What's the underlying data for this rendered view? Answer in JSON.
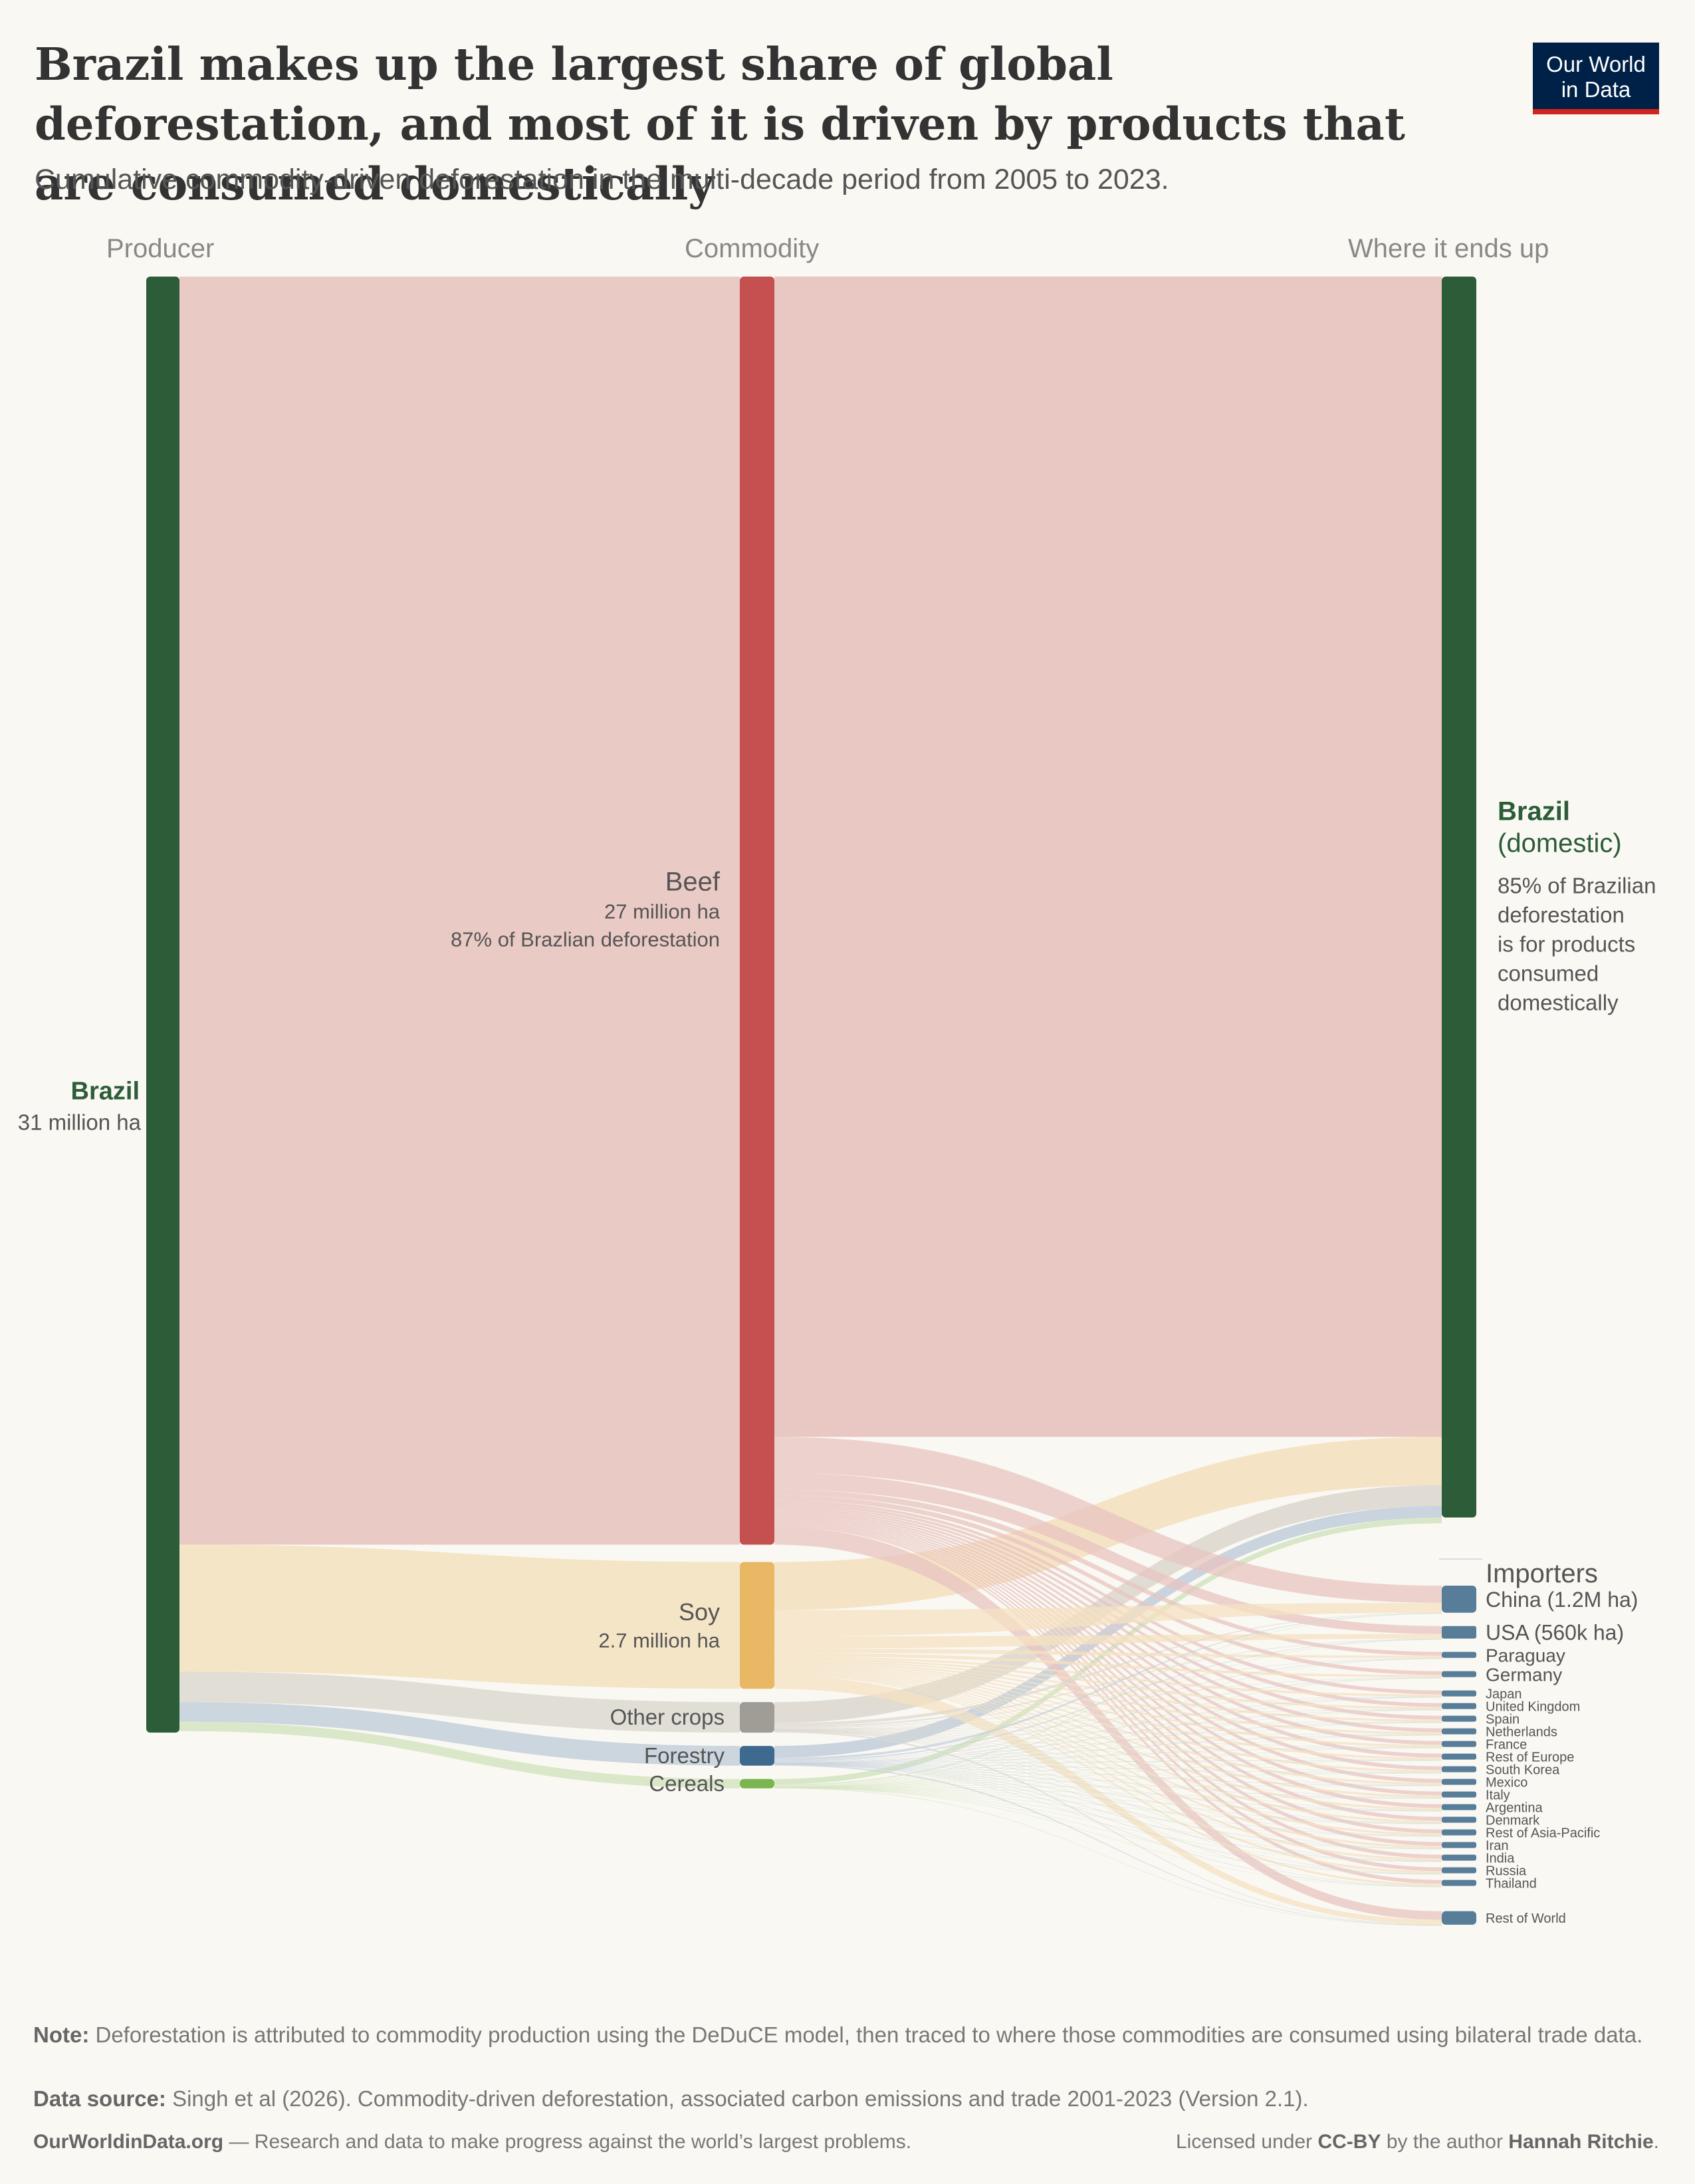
{
  "header": {
    "title": "Brazil makes up the largest share of global deforestation, and most of it is driven by products that are consumed domestically",
    "subtitle": "Cumulative commodity-driven deforestation in the multi-decade period from 2005 to 2023.",
    "logo_line1": "Our World",
    "logo_line2": "in Data"
  },
  "columns": {
    "producer": "Producer",
    "commodity": "Commodity",
    "destination": "Where it ends up"
  },
  "chart_data": {
    "type": "sankey",
    "producer": {
      "name": "Brazil",
      "value_label": "31 million ha",
      "value_mha": 31,
      "color": "#2c5c38"
    },
    "commodities": [
      {
        "name": "Beef",
        "value_label": "27 million ha",
        "share_label": "87% of Brazlian deforestation",
        "value_mha": 27,
        "color": "#c45050",
        "link_color": "#e8c4c0"
      },
      {
        "name": "Soy",
        "value_label": "2.7 million ha",
        "share_label": "",
        "value_mha": 2.7,
        "color": "#e8b864",
        "link_color": "#f4e2c2"
      },
      {
        "name": "Other crops",
        "value_label": "",
        "share_label": "",
        "value_mha": 0.65,
        "color": "#a09d97",
        "link_color": "#dedad2"
      },
      {
        "name": "Forestry",
        "value_label": "",
        "share_label": "",
        "value_mha": 0.42,
        "color": "#3d6a8e",
        "link_color": "#c7d2dc"
      },
      {
        "name": "Cereals",
        "value_label": "",
        "share_label": "",
        "value_mha": 0.2,
        "color": "#7ab650",
        "link_color": "#d6e6c4"
      }
    ],
    "domestic": {
      "name_line1": "Brazil",
      "name_line2": "(domestic)",
      "description_lines": [
        "85% of Brazilian",
        "deforestation",
        "is for products",
        "consumed",
        "domestically"
      ],
      "share_pct": 85,
      "color": "#2c5c38"
    },
    "importers_title": "Importers",
    "importers": [
      {
        "name": "China (1.2M ha)",
        "value_mha": 1.2
      },
      {
        "name": "USA (560k ha)",
        "value_mha": 0.56
      },
      {
        "name": "Paraguay",
        "value_mha": 0.2
      },
      {
        "name": "Germany",
        "value_mha": 0.16
      },
      {
        "name": "Japan",
        "value_mha": 0.09
      },
      {
        "name": "United Kingdom",
        "value_mha": 0.09
      },
      {
        "name": "Spain",
        "value_mha": 0.07
      },
      {
        "name": "Netherlands",
        "value_mha": 0.07
      },
      {
        "name": "France",
        "value_mha": 0.06
      },
      {
        "name": "Rest of Europe",
        "value_mha": 0.06
      },
      {
        "name": "South Korea",
        "value_mha": 0.05
      },
      {
        "name": "Mexico",
        "value_mha": 0.05
      },
      {
        "name": "Italy",
        "value_mha": 0.05
      },
      {
        "name": "Argentina",
        "value_mha": 0.05
      },
      {
        "name": "Denmark",
        "value_mha": 0.04
      },
      {
        "name": "Rest of Asia-Pacific",
        "value_mha": 0.04
      },
      {
        "name": "Iran",
        "value_mha": 0.04
      },
      {
        "name": "India",
        "value_mha": 0.04
      },
      {
        "name": "Russia",
        "value_mha": 0.04
      },
      {
        "name": "Thailand",
        "value_mha": 0.04
      },
      {
        "name": "Rest of World",
        "value_mha": 0.6
      }
    ],
    "importer_color": "#587d99"
  },
  "footer": {
    "note_label": "Note:",
    "note_text": "Deforestation is attributed to commodity production using the DeDuCE model, then traced to where those commodities are consumed using bilateral trade data.",
    "source_label": "Data source:",
    "source_text": "Singh et al (2026). Commodity-driven deforestation, associated carbon emissions and trade 2001-2023 (Version 2.1).",
    "site": "OurWorldinData.org",
    "tagline": "— Research and data to make progress against the world’s largest problems.",
    "license_prefix": "Licensed under",
    "license": "CC-BY",
    "license_mid": "by the author",
    "author": "Hannah Ritchie",
    "license_end": "."
  }
}
